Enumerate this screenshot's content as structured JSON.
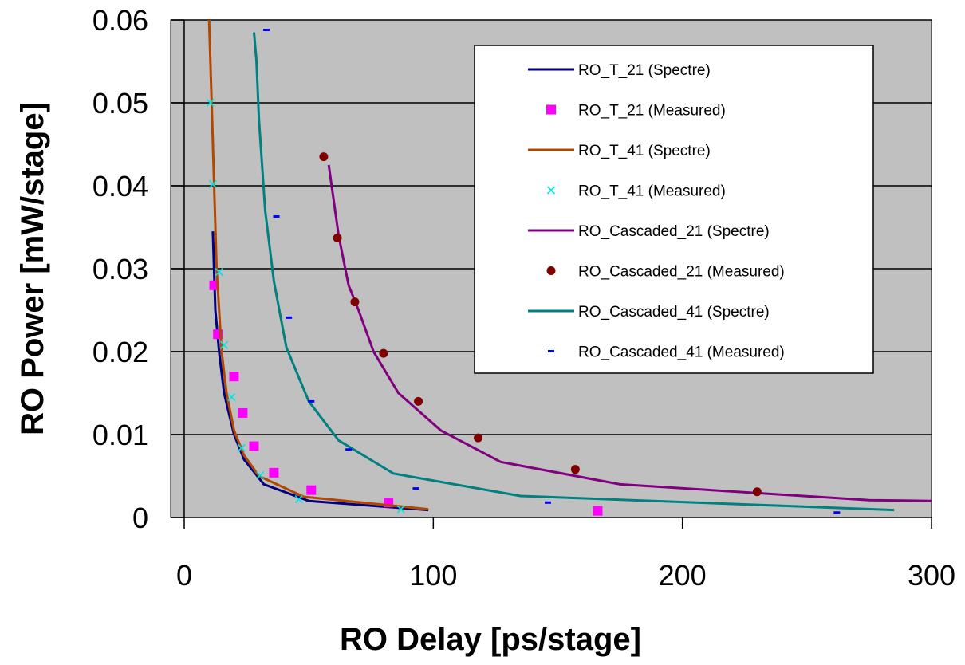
{
  "chart_data": {
    "type": "scatter",
    "title": "",
    "xlabel": "RO Delay [ps/stage]",
    "ylabel": "RO Power [mW/stage]",
    "xlim": [
      0,
      300
    ],
    "ylim": [
      0,
      0.06
    ],
    "x_ticks": [
      0,
      100,
      200,
      300
    ],
    "x_tick_labels": [
      "0",
      "100",
      "200",
      "300"
    ],
    "y_ticks": [
      0,
      0.01,
      0.02,
      0.03,
      0.04,
      0.05,
      0.06
    ],
    "y_tick_labels": [
      "0",
      "0.01",
      "0.02",
      "0.03",
      "0.04",
      "0.05",
      "0.06"
    ],
    "grid": "horizontal",
    "plot_background": "#c0c0c0",
    "legend_position": "top-right",
    "series": [
      {
        "name": "RO_T_21 (Spectre)",
        "kind": "line",
        "color": "#000080",
        "x": [
          11.5,
          12.5,
          14,
          16,
          18,
          20,
          24,
          32,
          50,
          98
        ],
        "y": [
          0.0345,
          0.025,
          0.02,
          0.015,
          0.0125,
          0.01,
          0.007,
          0.004,
          0.002,
          0.0009
        ]
      },
      {
        "name": "RO_T_21 (Measured)",
        "kind": "marker",
        "marker": "square",
        "color": "#ff00ff",
        "x": [
          12,
          13.5,
          20,
          23.5,
          28,
          36,
          51,
          82,
          166
        ],
        "y": [
          0.028,
          0.0221,
          0.017,
          0.0126,
          0.0086,
          0.0054,
          0.0033,
          0.0018,
          0.0008
        ]
      },
      {
        "name": "RO_T_41 (Spectre)",
        "kind": "line",
        "color": "#b34700",
        "x": [
          10,
          11,
          12,
          13,
          15,
          17,
          20,
          24,
          30,
          48,
          98
        ],
        "y": [
          0.06,
          0.05,
          0.04,
          0.03,
          0.02,
          0.015,
          0.0105,
          0.0075,
          0.005,
          0.0025,
          0.001
        ]
      },
      {
        "name": "RO_T_41 (Measured)",
        "kind": "marker",
        "marker": "x",
        "color": "#00e5e5",
        "x": [
          10.5,
          11.5,
          14,
          16,
          19,
          23,
          30.5,
          46,
          87
        ],
        "y": [
          0.05,
          0.0402,
          0.0296,
          0.0208,
          0.0145,
          0.0084,
          0.0051,
          0.0022,
          0.001
        ]
      },
      {
        "name": "RO_Cascaded_21 (Spectre)",
        "kind": "line",
        "color": "#800080",
        "x": [
          58,
          62,
          66,
          70,
          76,
          86,
          103,
          127,
          175,
          275,
          300
        ],
        "y": [
          0.0425,
          0.034,
          0.028,
          0.025,
          0.02,
          0.015,
          0.0105,
          0.0067,
          0.004,
          0.0021,
          0.002
        ]
      },
      {
        "name": "RO_Cascaded_21 (Measured)",
        "kind": "marker",
        "marker": "circle",
        "color": "#800000",
        "x": [
          56,
          61.5,
          68.5,
          80,
          94,
          118,
          157,
          230
        ],
        "y": [
          0.0435,
          0.0337,
          0.026,
          0.0198,
          0.014,
          0.0096,
          0.0058,
          0.0031
        ]
      },
      {
        "name": "RO_Cascaded_41 (Spectre)",
        "kind": "line",
        "color": "#008080",
        "x": [
          28,
          29,
          30,
          32.5,
          36,
          41,
          50,
          62,
          84,
          135,
          285
        ],
        "y": [
          0.0585,
          0.055,
          0.048,
          0.037,
          0.0285,
          0.0205,
          0.014,
          0.0093,
          0.0053,
          0.0026,
          0.0009
        ]
      },
      {
        "name": "RO_Cascaded_41 (Measured)",
        "kind": "marker",
        "marker": "dash",
        "color": "#0000ff",
        "x": [
          33,
          37,
          42,
          51,
          66,
          93,
          146,
          262
        ],
        "y": [
          0.0588,
          0.0363,
          0.0241,
          0.014,
          0.0082,
          0.0035,
          0.0018,
          0.0006
        ]
      }
    ]
  }
}
